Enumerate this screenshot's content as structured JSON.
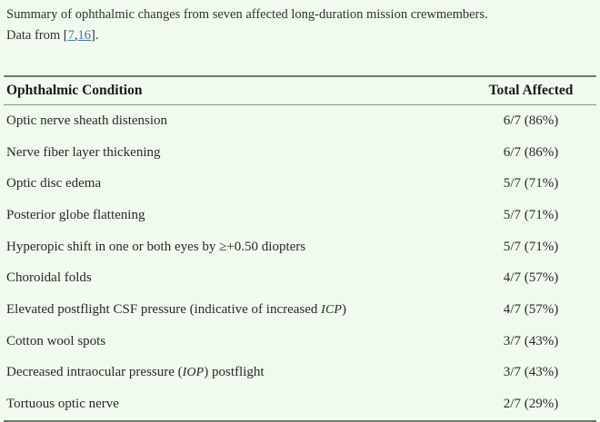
{
  "caption": {
    "line1": "Summary of ophthalmic changes from seven affected long-duration mission crewmembers.",
    "line2": {
      "prefix": "Data from [",
      "ref1": "7",
      "separator": ",",
      "ref2": "16",
      "suffix": "]."
    }
  },
  "table": {
    "headers": {
      "condition": "Ophthalmic Condition",
      "total": "Total Affected"
    },
    "rows": [
      {
        "condition": [
          {
            "t": "Optic nerve sheath distension"
          }
        ],
        "total": "6/7 (86%)"
      },
      {
        "condition": [
          {
            "t": "Nerve fiber layer thickening"
          }
        ],
        "total": "6/7 (86%)"
      },
      {
        "condition": [
          {
            "t": "Optic disc edema"
          }
        ],
        "total": "5/7 (71%)"
      },
      {
        "condition": [
          {
            "t": "Posterior globe flattening"
          }
        ],
        "total": "5/7 (71%)"
      },
      {
        "condition": [
          {
            "t": "Hyperopic shift in one or both eyes by ≥+0.50 diopters"
          }
        ],
        "total": "5/7 (71%)"
      },
      {
        "condition": [
          {
            "t": "Choroidal folds"
          }
        ],
        "total": "4/7 (57%)"
      },
      {
        "condition": [
          {
            "t": "Elevated postflight CSF pressure (indicative of increased "
          },
          {
            "t": "ICP",
            "i": true
          },
          {
            "t": ")"
          }
        ],
        "total": "4/7 (57%)"
      },
      {
        "condition": [
          {
            "t": "Cotton wool spots"
          }
        ],
        "total": "3/7 (43%)"
      },
      {
        "condition": [
          {
            "t": "Decreased intraocular pressure ("
          },
          {
            "t": "IOP",
            "i": true
          },
          {
            "t": ") postflight"
          }
        ],
        "total": "3/7 (43%)"
      },
      {
        "condition": [
          {
            "t": "Tortuous optic nerve"
          }
        ],
        "total": "2/7 (29%)"
      }
    ]
  },
  "colors": {
    "background": "#f0faee",
    "text": "#2a2a2a",
    "header_text": "#1b1b1b",
    "rule": "#6f7a6f",
    "link": "#45799f"
  }
}
